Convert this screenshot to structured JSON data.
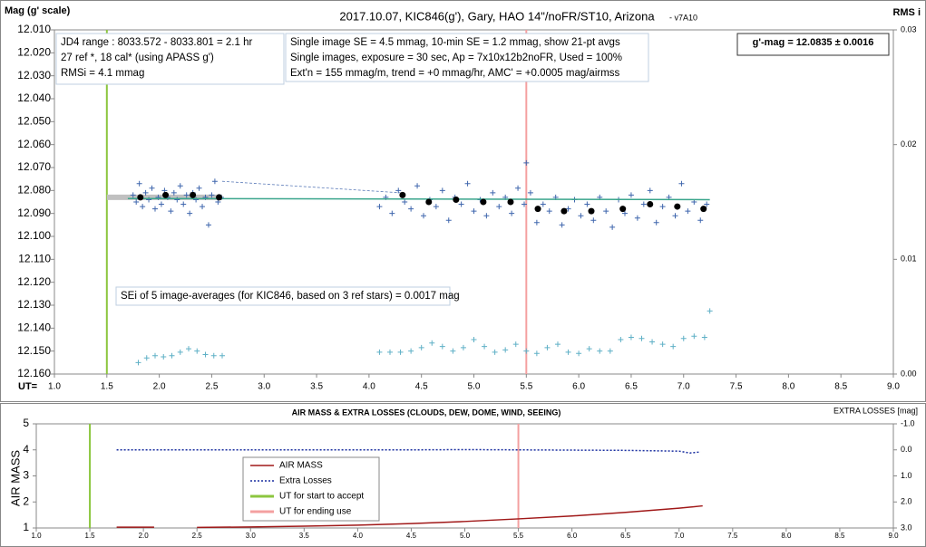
{
  "chart_data": [
    {
      "type": "scatter",
      "title": "2017.10.07,  KIC846(g'),  Gary,  HAO  14\"/noFR/ST10,  Arizona",
      "subtitle": "- v7A10",
      "y_label": "Mag (g' scale)",
      "y2_label": "RMS i",
      "x_label": "UT=",
      "xlim": [
        1.0,
        9.0
      ],
      "xticks": [
        {
          "value": 1.0,
          "label": "1.0"
        },
        1.5,
        {
          "value": 2.0,
          "label": "2.0"
        },
        2.5,
        {
          "value": 3.0,
          "label": "3.0"
        },
        3.5,
        {
          "value": 4.0,
          "label": "4.0"
        },
        4.5,
        {
          "value": 5.0,
          "label": "5.0"
        },
        5.5,
        {
          "value": 6.0,
          "label": "6.0"
        },
        6.5,
        {
          "value": 7.0,
          "label": "7.0"
        },
        7.5,
        {
          "value": 8.0,
          "label": "8.0"
        },
        8.5,
        {
          "value": 9.0,
          "label": "9.0"
        }
      ],
      "ylim": [
        12.16,
        12.01
      ],
      "yticks": [
        {
          "value": 12.01,
          "label": "12.010"
        },
        {
          "value": 12.02,
          "label": "12.020"
        },
        {
          "value": 12.03,
          "label": "12.030"
        },
        {
          "value": 12.04,
          "label": "12.040"
        },
        {
          "value": 12.05,
          "label": "12.050"
        },
        {
          "value": 12.06,
          "label": "12.060"
        },
        {
          "value": 12.07,
          "label": "12.070"
        },
        {
          "value": 12.08,
          "label": "12.080"
        },
        {
          "value": 12.09,
          "label": "12.090"
        },
        {
          "value": 12.1,
          "label": "12.100"
        },
        {
          "value": 12.11,
          "label": "12.110"
        },
        {
          "value": 12.12,
          "label": "12.120"
        },
        {
          "value": 12.13,
          "label": "12.130"
        },
        {
          "value": 12.14,
          "label": "12.140"
        },
        {
          "value": 12.15,
          "label": "12.150"
        },
        {
          "value": 12.16,
          "label": "12.160"
        }
      ],
      "y2lim": [
        0,
        0.03
      ],
      "y2ticks": [
        {
          "value": 0.03,
          "label": "0.03"
        },
        {
          "value": 0.02,
          "label": "0.02"
        },
        {
          "value": 0.01,
          "label": "0.01"
        },
        {
          "value": 0,
          "label": "0.00"
        }
      ],
      "grid": false,
      "vlines": [
        {
          "x": 1.5,
          "color": "#8cc63f"
        },
        {
          "x": 5.5,
          "color": "#f4a0a0"
        }
      ],
      "annotations": [
        {
          "lines": [
            "JD4 range : 8033.572 - 8033.801 =  2.1  hr",
            "27 ref *, 18 cal* (using APASS g')",
            "RMSi = 4.1 mmag"
          ]
        },
        {
          "lines": [
            "Single image SE = 4.5 mmag, 10-min SE = 1.2 mmag, show 21-pt avgs",
            "Single images, exposure = 30 sec, Ap = 7x10x12b2noFR, Used = 100%",
            "Ext'n = 155 mmag/m, trend = +0 mmag/hr, AMC' = +0.0005 mag/airmss"
          ]
        },
        {
          "lines": [
            "g'-mag = 12.0835 ± 0.0016"
          ]
        },
        {
          "lines": [
            "SEi of 5 image-averages (for KIC846, based on 3 ref stars) = 0.0017 mag"
          ]
        }
      ],
      "series": [
        {
          "style": "band",
          "color": "#c0c0c0",
          "x": [
            1.5,
            2.6
          ],
          "values": [
            12.083,
            12.083
          ]
        },
        {
          "style": "dashed",
          "color": "#5a7ab8",
          "x": [
            2.6,
            4.3
          ],
          "values": [
            12.076,
            12.081
          ]
        },
        {
          "style": "cross",
          "color": "#3f66ad",
          "x": [
            1.75,
            1.78,
            1.81,
            1.84,
            1.87,
            1.9,
            1.93,
            1.96,
            1.99,
            2.02,
            2.05,
            2.08,
            2.11,
            2.14,
            2.17,
            2.2,
            2.23,
            2.26,
            2.29,
            2.32,
            2.35,
            2.38,
            2.41,
            2.44,
            2.47,
            2.5,
            2.53,
            2.56,
            2.59,
            4.1,
            4.16,
            4.22,
            4.28,
            4.34,
            4.4,
            4.46,
            4.52,
            4.58,
            4.64,
            4.7,
            4.76,
            4.82,
            4.88,
            4.94,
            5.0,
            5.06,
            5.12,
            5.18,
            5.24,
            5.3,
            5.36,
            5.42,
            5.48,
            5.5,
            5.54,
            5.6,
            5.66,
            5.72,
            5.78,
            5.84,
            5.9,
            5.96,
            6.02,
            6.08,
            6.14,
            6.2,
            6.26,
            6.32,
            6.38,
            6.44,
            6.5,
            6.56,
            6.62,
            6.68,
            6.74,
            6.8,
            6.86,
            6.92,
            6.98,
            7.04,
            7.1,
            7.16,
            7.22
          ],
          "values": [
            12.082,
            12.085,
            12.077,
            12.087,
            12.081,
            12.084,
            12.079,
            12.088,
            12.083,
            12.086,
            12.08,
            12.083,
            12.089,
            12.081,
            12.084,
            12.078,
            12.086,
            12.082,
            12.09,
            12.081,
            12.084,
            12.079,
            12.087,
            12.083,
            12.095,
            12.082,
            12.076,
            12.085,
            12.083,
            12.087,
            12.083,
            12.09,
            12.08,
            12.085,
            12.088,
            12.078,
            12.091,
            12.084,
            12.087,
            12.08,
            12.093,
            12.083,
            12.086,
            12.077,
            12.089,
            12.084,
            12.091,
            12.081,
            12.087,
            12.083,
            12.09,
            12.079,
            12.086,
            12.068,
            12.081,
            12.094,
            12.086,
            12.089,
            12.083,
            12.095,
            12.088,
            12.084,
            12.091,
            12.086,
            12.093,
            12.083,
            12.089,
            12.096,
            12.084,
            12.09,
            12.082,
            12.092,
            12.086,
            12.08,
            12.094,
            12.087,
            12.083,
            12.091,
            12.077,
            12.089,
            12.085,
            12.093,
            12.086
          ]
        },
        {
          "style": "line",
          "color": "#3aa58c",
          "x": [
            1.7,
            7.25
          ],
          "values": [
            12.0835,
            12.084
          ]
        },
        {
          "style": "dot",
          "color": "#000000",
          "x": [
            1.82,
            2.06,
            2.32,
            2.57,
            4.32,
            4.57,
            4.83,
            5.09,
            5.35,
            5.61,
            5.86,
            6.12,
            6.42,
            6.68,
            6.94,
            7.19
          ],
          "values": [
            12.083,
            12.082,
            12.082,
            12.083,
            12.082,
            12.085,
            12.084,
            12.085,
            12.085,
            12.088,
            12.089,
            12.089,
            12.088,
            12.086,
            12.087,
            12.088
          ]
        },
        {
          "style": "cross",
          "color": "#5fb0c6",
          "axis": "y2",
          "x": [
            1.8,
            1.88,
            1.96,
            2.04,
            2.12,
            2.2,
            2.28,
            2.36,
            2.44,
            2.52,
            2.6,
            4.1,
            4.2,
            4.3,
            4.4,
            4.5,
            4.6,
            4.7,
            4.8,
            4.9,
            5.0,
            5.1,
            5.2,
            5.3,
            5.4,
            5.5,
            5.6,
            5.7,
            5.8,
            5.9,
            6.0,
            6.1,
            6.2,
            6.3,
            6.4,
            6.5,
            6.6,
            6.7,
            6.8,
            6.9,
            7.0,
            7.1,
            7.2,
            7.25
          ],
          "values": [
            0.001,
            0.0014,
            0.0016,
            0.0015,
            0.0016,
            0.0019,
            0.0022,
            0.002,
            0.0017,
            0.0016,
            0.0016,
            0.0019,
            0.0019,
            0.0019,
            0.002,
            0.0023,
            0.0027,
            0.0024,
            0.002,
            0.0023,
            0.003,
            0.0024,
            0.0019,
            0.0021,
            0.0026,
            0.002,
            0.0018,
            0.0023,
            0.0026,
            0.0019,
            0.0018,
            0.0022,
            0.002,
            0.002,
            0.003,
            0.0032,
            0.0031,
            0.0028,
            0.0026,
            0.0024,
            0.0031,
            0.0033,
            0.0032,
            0.0055
          ]
        }
      ]
    },
    {
      "type": "line",
      "title": "AIR MASS & EXTRA LOSSES (CLOUDS, DEW, DOME, WIND, SEEING)",
      "y_label": "AIR MASS",
      "y2_label": "EXTRA LOSSES [mag]",
      "xlim": [
        1.0,
        9.0
      ],
      "xticks": [
        {
          "value": 1.0,
          "label": "1.0"
        },
        1.5,
        {
          "value": 2.0,
          "label": "2.0"
        },
        2.5,
        {
          "value": 3.0,
          "label": "3.0"
        },
        3.5,
        {
          "value": 4.0,
          "label": "4.0"
        },
        4.5,
        {
          "value": 5.0,
          "label": "5.0"
        },
        5.5,
        {
          "value": 6.0,
          "label": "6.0"
        },
        6.5,
        {
          "value": 7.0,
          "label": "7.0"
        },
        7.5,
        {
          "value": 8.0,
          "label": "8.0"
        },
        8.5,
        {
          "value": 9.0,
          "label": "9.0"
        }
      ],
      "ylim": [
        1,
        5
      ],
      "yticks": [
        5,
        4,
        3,
        2,
        1
      ],
      "y2lim": [
        -1,
        3
      ],
      "y2_inverted": true,
      "y2ticks": [
        {
          "value": -1,
          "label": "-1.0"
        },
        {
          "value": 0,
          "label": "0.0"
        },
        {
          "value": 1,
          "label": "1.0"
        },
        {
          "value": 2,
          "label": "2.0"
        },
        {
          "value": 3,
          "label": "3.0"
        }
      ],
      "grid": false,
      "series": [
        {
          "name": "AIR MASS",
          "style": "line",
          "color": "#a01818",
          "x": [
            1.75,
            2.1,
            2.3,
            2.5,
            3.0,
            3.5,
            4.0,
            4.5,
            5.0,
            5.5,
            6.0,
            6.5,
            7.0,
            7.22
          ],
          "values": [
            1.03,
            1.03,
            null,
            1.02,
            1.04,
            1.07,
            1.11,
            1.17,
            1.25,
            1.35,
            1.46,
            1.6,
            1.76,
            1.85
          ]
        },
        {
          "name": "Extra Losses",
          "style": "dotline",
          "color": "#1a2fa0",
          "axis": "y2",
          "x": [
            1.75,
            2.5,
            3.0,
            4.0,
            4.5,
            5.0,
            5.5,
            6.0,
            6.5,
            7.0,
            7.1,
            7.2
          ],
          "values": [
            0,
            0,
            0,
            0,
            0,
            -0.01,
            0,
            0.01,
            0.02,
            0.05,
            0.12,
            0.08
          ]
        }
      ],
      "markers": [
        {
          "name": "UT for start to accept",
          "x": 1.5,
          "color": "#8cc63f"
        },
        {
          "name": "UT for ending use",
          "x": 5.5,
          "color": "#f4a0a0"
        }
      ]
    }
  ]
}
